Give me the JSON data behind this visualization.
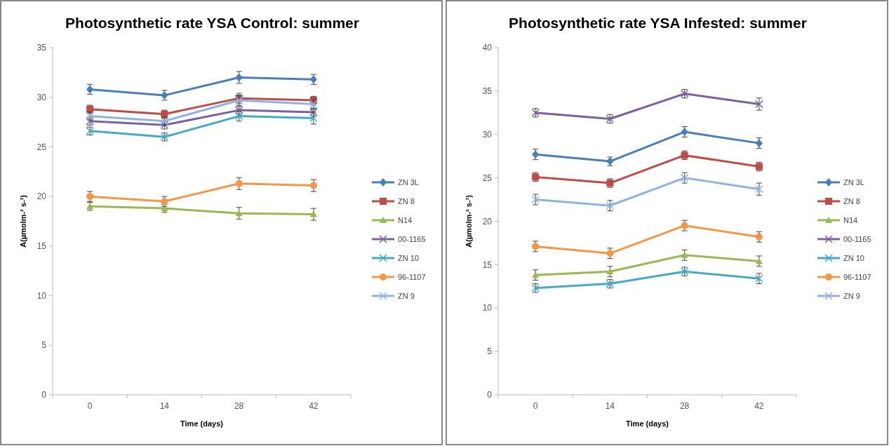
{
  "chart_data": [
    {
      "type": "line",
      "title": "Photosynthetic rate YSA Control: summer",
      "xlabel": "Time (days)",
      "ylabel": "A(µmolm-² s-¹)",
      "categories": [
        "0",
        "14",
        "28",
        "42"
      ],
      "ylim": [
        0,
        35
      ],
      "yticks": [
        0,
        5,
        10,
        15,
        20,
        25,
        30,
        35
      ],
      "grid": false,
      "legend": "right",
      "series": [
        {
          "name": "ZN 3L",
          "color": "#4a7ebb",
          "marker": "diamond",
          "values": [
            30.8,
            30.2,
            32.0,
            31.8
          ],
          "errors": [
            0.5,
            0.5,
            0.6,
            0.5
          ]
        },
        {
          "name": "ZN 8",
          "color": "#be4b48",
          "marker": "square",
          "values": [
            28.8,
            28.3,
            29.9,
            29.7
          ],
          "errors": [
            0.4,
            0.4,
            0.5,
            0.4
          ]
        },
        {
          "name": "N14",
          "color": "#98b954",
          "marker": "triangle",
          "values": [
            19.0,
            18.8,
            18.3,
            18.2
          ],
          "errors": [
            0.4,
            0.4,
            0.6,
            0.6
          ]
        },
        {
          "name": "00-1165",
          "color": "#7d60a0",
          "marker": "cross",
          "values": [
            27.6,
            27.2,
            28.7,
            28.5
          ],
          "errors": [
            0.4,
            0.4,
            0.4,
            0.4
          ]
        },
        {
          "name": "ZN 10",
          "color": "#46aac5",
          "marker": "cross",
          "values": [
            26.6,
            26.0,
            28.1,
            27.9
          ],
          "errors": [
            0.4,
            0.4,
            0.5,
            0.6
          ]
        },
        {
          "name": "96-1107",
          "color": "#f79646",
          "marker": "circle",
          "values": [
            20.0,
            19.5,
            21.3,
            21.1
          ],
          "errors": [
            0.5,
            0.5,
            0.6,
            0.6
          ]
        },
        {
          "name": "ZN 9",
          "color": "#8eb4e3",
          "marker": "cross",
          "values": [
            28.1,
            27.6,
            29.7,
            29.3
          ],
          "errors": [
            0.4,
            0.4,
            0.5,
            0.5
          ]
        }
      ]
    },
    {
      "type": "line",
      "title": "Photosynthetic rate YSA Infested: summer",
      "xlabel": "Time (days)",
      "ylabel": "A(µmolm-² s-¹)",
      "categories": [
        "0",
        "14",
        "28",
        "42"
      ],
      "ylim": [
        0,
        40
      ],
      "yticks": [
        0,
        5,
        10,
        15,
        20,
        25,
        30,
        35,
        40
      ],
      "grid": false,
      "legend": "right",
      "series": [
        {
          "name": "ZN 3L",
          "color": "#4a7ebb",
          "marker": "diamond",
          "values": [
            27.7,
            26.9,
            30.3,
            29.0
          ],
          "errors": [
            0.6,
            0.5,
            0.6,
            0.6
          ]
        },
        {
          "name": "ZN 8",
          "color": "#be4b48",
          "marker": "square",
          "values": [
            25.1,
            24.4,
            27.6,
            26.3
          ],
          "errors": [
            0.5,
            0.5,
            0.5,
            0.5
          ]
        },
        {
          "name": "N14",
          "color": "#98b954",
          "marker": "triangle",
          "values": [
            13.8,
            14.2,
            16.1,
            15.4
          ],
          "errors": [
            0.6,
            0.6,
            0.6,
            0.6
          ]
        },
        {
          "name": "00-1165",
          "color": "#7d60a0",
          "marker": "cross",
          "values": [
            32.5,
            31.8,
            34.7,
            33.5
          ],
          "errors": [
            0.5,
            0.5,
            0.5,
            0.7
          ]
        },
        {
          "name": "ZN 10",
          "color": "#46aac5",
          "marker": "cross",
          "values": [
            12.3,
            12.8,
            14.2,
            13.4
          ],
          "errors": [
            0.5,
            0.5,
            0.5,
            0.6
          ]
        },
        {
          "name": "96-1107",
          "color": "#f79646",
          "marker": "circle",
          "values": [
            17.1,
            16.3,
            19.5,
            18.2
          ],
          "errors": [
            0.6,
            0.6,
            0.6,
            0.6
          ]
        },
        {
          "name": "ZN 9",
          "color": "#8eb4e3",
          "marker": "cross",
          "values": [
            22.5,
            21.8,
            25.0,
            23.7
          ],
          "errors": [
            0.6,
            0.6,
            0.6,
            0.7
          ]
        }
      ]
    }
  ]
}
